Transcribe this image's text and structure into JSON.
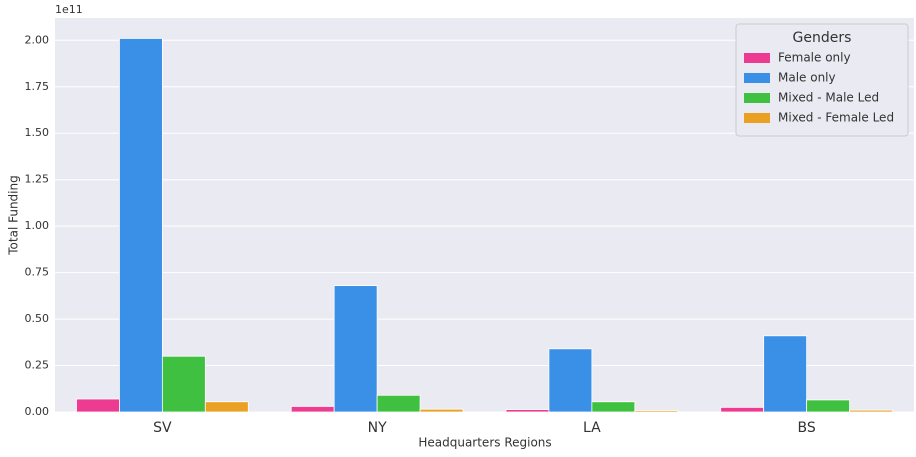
{
  "chart_data": {
    "type": "bar",
    "offset_label": "1e11",
    "xlabel": "Headquarters Regions",
    "ylabel": "Total Funding",
    "categories": [
      "SV",
      "NY",
      "LA",
      "BS"
    ],
    "legend_title": "Genders",
    "legend": "upper right",
    "grid": true,
    "series": [
      {
        "name": "Female only",
        "color": "#ec3b91",
        "values": [
          0.07,
          0.03,
          0.013,
          0.025
        ]
      },
      {
        "name": "Male only",
        "color": "#3a8fe6",
        "values": [
          2.01,
          0.68,
          0.34,
          0.41
        ]
      },
      {
        "name": "Mixed - Male Led",
        "color": "#40c040",
        "values": [
          0.3,
          0.09,
          0.055,
          0.065
        ]
      },
      {
        "name": "Mixed - Female Led",
        "color": "#e9a023",
        "values": [
          0.055,
          0.015,
          0.008,
          0.01
        ]
      }
    ],
    "ylim": [
      0,
      2.12
    ],
    "yticks": [
      {
        "value": 0,
        "label": "0.00"
      },
      {
        "value": 0.25,
        "label": "0.25"
      },
      {
        "value": 0.5,
        "label": "0.50"
      },
      {
        "value": 0.75,
        "label": "0.75"
      },
      {
        "value": 1,
        "label": "1.00"
      },
      {
        "value": 1.25,
        "label": "1.25"
      },
      {
        "value": 1.5,
        "label": "1.50"
      },
      {
        "value": 1.75,
        "label": "1.75"
      },
      {
        "value": 2,
        "label": "2.00"
      }
    ]
  }
}
